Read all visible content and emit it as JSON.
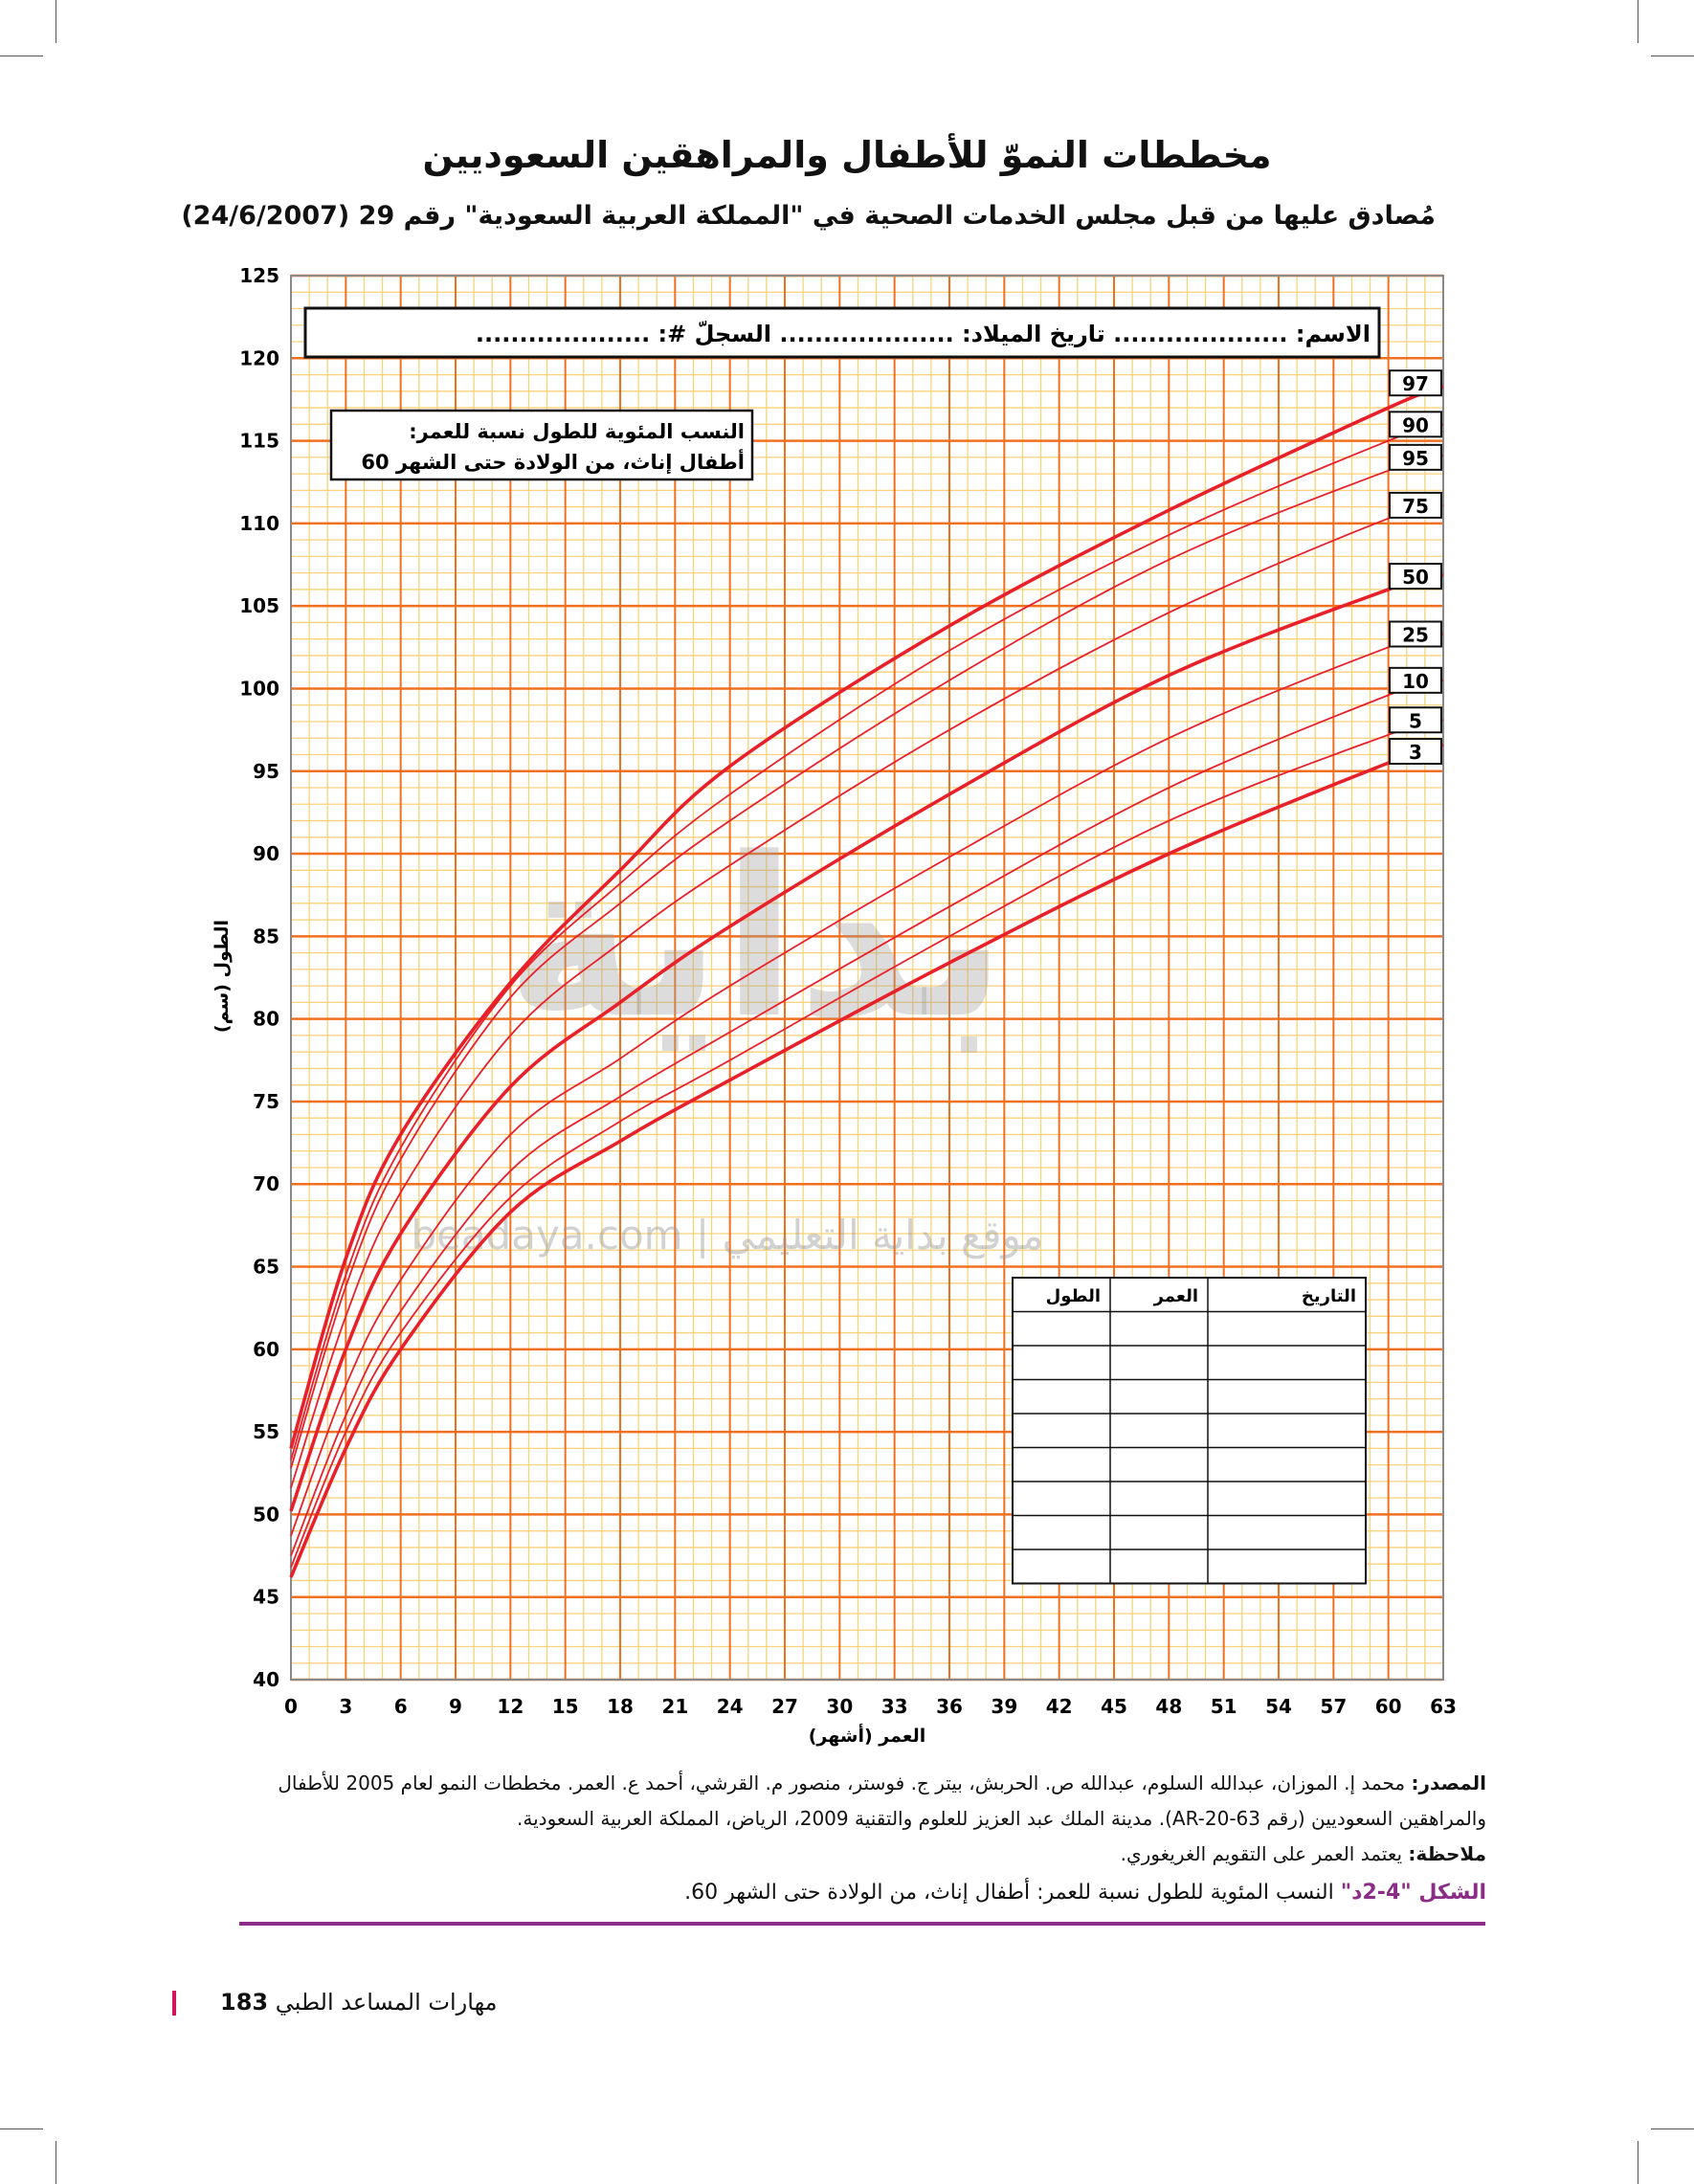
{
  "header": {
    "title": "مخططات النموّ للأطفال والمراهقين السعوديين",
    "subtitle": "مُصادق عليها من قبل مجلس الخدمات الصحية في \"المملكة العربية السعودية\" رقم 29 (24/6/2007)"
  },
  "form": {
    "name_label": "الاسم: ....................  تاريخ الميلاد: ....................  السجلّ #: ....................",
    "legend_line1": "النسب المئوية للطول نسبة للعمر:",
    "legend_line2": "أطفال إناث، من الولادة حتى الشهر 60"
  },
  "record_table": {
    "headers": [
      "التاريخ",
      "العمر",
      "الطول"
    ],
    "rows": 8
  },
  "watermark": "beadaya.com | موقع بداية التعليمي",
  "chart_data": {
    "type": "line",
    "title": "النسب المئوية للطول نسبة للعمر: أطفال إناث، من الولادة حتى الشهر 60",
    "xlabel": "العمر (أشهر)",
    "ylabel": "الطول (سم)",
    "xlim": [
      0,
      63
    ],
    "ylim": [
      40,
      125
    ],
    "x_ticks": [
      0,
      3,
      6,
      9,
      12,
      15,
      18,
      21,
      24,
      27,
      30,
      33,
      36,
      39,
      42,
      45,
      48,
      51,
      54,
      57,
      60,
      63
    ],
    "y_ticks": [
      40,
      45,
      50,
      55,
      60,
      65,
      70,
      75,
      80,
      85,
      90,
      95,
      100,
      105,
      110,
      115,
      120,
      125
    ],
    "grid": true,
    "x": [
      0,
      3,
      6,
      12,
      18,
      24,
      36,
      48,
      60,
      63
    ],
    "series": [
      {
        "name": "97",
        "label": "97",
        "bold": true,
        "values": [
          54.0,
          65.5,
          73.0,
          82.2,
          89.0,
          95.3,
          103.8,
          110.8,
          117.0,
          118.3
        ]
      },
      {
        "name": "90",
        "label": "90",
        "bold": false,
        "values": [
          53.3,
          64.5,
          72.2,
          82.0,
          88.2,
          93.6,
          102.3,
          109.3,
          115.0,
          116.0
        ]
      },
      {
        "name": "95",
        "label": "95",
        "bold": false,
        "values": [
          52.8,
          63.8,
          71.5,
          81.3,
          87.0,
          92.0,
          100.5,
          107.8,
          113.2,
          114.1
        ]
      },
      {
        "name": "75",
        "label": "75",
        "bold": false,
        "values": [
          51.6,
          62.0,
          69.5,
          79.0,
          84.6,
          89.3,
          97.5,
          104.6,
          110.3,
          111.1
        ]
      },
      {
        "name": "50",
        "label": "50",
        "bold": true,
        "values": [
          50.2,
          60.0,
          67.0,
          75.9,
          81.0,
          85.6,
          93.6,
          100.8,
          106.0,
          106.9
        ]
      },
      {
        "name": "25",
        "label": "25",
        "bold": false,
        "values": [
          48.7,
          57.8,
          64.2,
          73.0,
          77.6,
          82.0,
          89.8,
          97.0,
          102.5,
          103.3
        ]
      },
      {
        "name": "10",
        "label": "10",
        "bold": false,
        "values": [
          47.5,
          56.0,
          62.3,
          70.8,
          75.3,
          79.2,
          86.8,
          94.0,
          99.6,
          100.5
        ]
      },
      {
        "name": "5",
        "label": "5",
        "bold": false,
        "values": [
          46.8,
          55.0,
          61.0,
          69.2,
          73.8,
          77.5,
          85.0,
          92.0,
          97.2,
          98.1
        ]
      },
      {
        "name": "3",
        "label": "3",
        "bold": true,
        "values": [
          46.2,
          54.0,
          60.0,
          68.3,
          72.6,
          76.3,
          83.4,
          90.0,
          95.5,
          96.6
        ]
      }
    ]
  },
  "source": {
    "label": "المصدر:",
    "text": "محمد إ. الموزان، عبدالله السلوم، عبدالله ص. الحربش، بيتر ج. فوستر، منصور م. القرشي، أحمد ع. العمر. مخططات النمو لعام 2005 للأطفال والمراهقين السعوديين (رقم AR-20-63). مدينة الملك عبد العزيز للعلوم والتقنية 2009، الرياض، المملكة العربية السعودية.",
    "note_label": "ملاحظة:",
    "note_text": "يعتمد العمر على التقويم الغريغوري."
  },
  "caption": {
    "figure": "الشكل \"4-2د\"",
    "text": "النسب المئوية للطول نسبة للعمر: أطفال إناث، من الولادة حتى الشهر 60."
  },
  "footer": {
    "page_number": "183",
    "book_title": "مهارات المساعد الطبي"
  },
  "colors": {
    "major_grid": "#f07020",
    "minor_grid": "#f9d27a",
    "curve": "#e8202a",
    "caption": "#8b2c86"
  }
}
